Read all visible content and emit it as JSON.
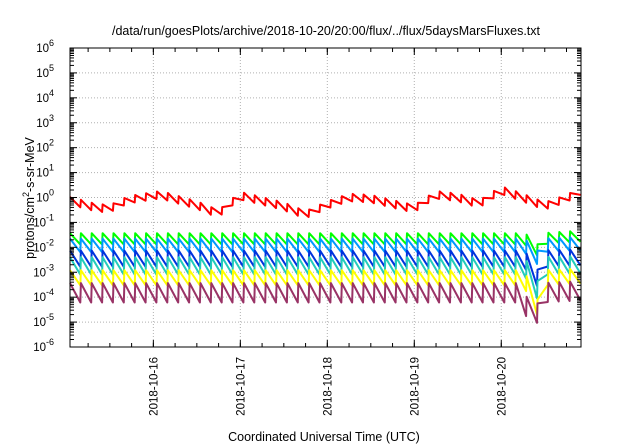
{
  "chart_data": {
    "type": "line",
    "title": "/data/run/goesPlots/archive/2018-10-20/20:00/flux/../flux/5daysMarsFluxes.txt",
    "xlabel": "Coordinated Universal Time (UTC)",
    "ylabel": "protons/cm2-s-sr-MeV",
    "ylabel_parts": {
      "before": "protons/cm",
      "sup": "2",
      "after": "-s-sr-MeV"
    },
    "yscale": "log",
    "ylim": [
      1e-06,
      1000000.0
    ],
    "xlim": [
      "2018-10-15 01:00",
      "2018-10-20 22:00"
    ],
    "grid": true,
    "x_ticks": [
      "2018-10-16",
      "2018-10-17",
      "2018-10-18",
      "2018-10-19",
      "2018-10-20"
    ],
    "y_ticks": [
      {
        "base": "10",
        "exp": "-6"
      },
      {
        "base": "10",
        "exp": "-5"
      },
      {
        "base": "10",
        "exp": "-4"
      },
      {
        "base": "10",
        "exp": "-3"
      },
      {
        "base": "10",
        "exp": "-2"
      },
      {
        "base": "10",
        "exp": "-1"
      },
      {
        "base": "10",
        "exp": "0"
      },
      {
        "base": "10",
        "exp": "1"
      },
      {
        "base": "10",
        "exp": "2"
      },
      {
        "base": "10",
        "exp": "3"
      },
      {
        "base": "10",
        "exp": "4"
      },
      {
        "base": "10",
        "exp": "5"
      },
      {
        "base": "10",
        "exp": "6"
      }
    ],
    "sawtooth_period_hours": 3,
    "series": [
      {
        "color": "#ff0000",
        "kind": "sawtooth",
        "keyframes": [
          [
            "2018-10-15 01:00",
            0.75
          ],
          [
            "2018-10-15 08:00",
            0.4
          ],
          [
            "2018-10-15 12:00",
            0.35
          ],
          [
            "2018-10-15 17:00",
            0.8
          ],
          [
            "2018-10-16 02:00",
            1.3
          ],
          [
            "2018-10-16 12:00",
            0.5
          ],
          [
            "2018-10-16 18:00",
            0.22
          ],
          [
            "2018-10-17 00:00",
            1.2
          ],
          [
            "2018-10-17 12:00",
            0.45
          ],
          [
            "2018-10-17 18:00",
            0.2
          ],
          [
            "2018-10-18 00:00",
            0.5
          ],
          [
            "2018-10-18 06:00",
            1.0
          ],
          [
            "2018-10-18 12:00",
            0.9
          ],
          [
            "2018-10-19 00:00",
            0.35
          ],
          [
            "2018-10-19 06:00",
            1.3
          ],
          [
            "2018-10-19 12:00",
            1.0
          ],
          [
            "2018-10-19 18:00",
            0.55
          ],
          [
            "2018-10-20 00:00",
            2.0
          ],
          [
            "2018-10-20 06:00",
            1.0
          ],
          [
            "2018-10-20 12:00",
            0.45
          ],
          [
            "2018-10-20 18:00",
            0.9
          ],
          [
            "2018-10-20 22:00",
            1.8
          ]
        ],
        "amplitude": 2.0
      },
      {
        "color": "#00ff00",
        "kind": "sawtooth",
        "keyframes": [
          [
            "2018-10-15 01:00",
            0.022
          ],
          [
            "2018-10-20 06:00",
            0.022
          ],
          [
            "2018-10-20 09:00",
            0.015
          ],
          [
            "2018-10-20 10:00",
            0.008
          ],
          [
            "2018-10-20 10:30",
            0.022
          ],
          [
            "2018-10-20 22:00",
            0.028
          ]
        ],
        "amplitude": 2.8
      },
      {
        "color": "#0099ff",
        "kind": "sawtooth",
        "keyframes": [
          [
            "2018-10-15 01:00",
            0.012
          ],
          [
            "2018-10-20 06:00",
            0.012
          ],
          [
            "2018-10-20 09:00",
            0.007
          ],
          [
            "2018-10-20 10:00",
            0.004
          ],
          [
            "2018-10-20 10:30",
            0.012
          ],
          [
            "2018-10-20 22:00",
            0.014
          ]
        ],
        "amplitude": 3.5
      },
      {
        "color": "#0033dd",
        "kind": "sawtooth",
        "keyframes": [
          [
            "2018-10-15 01:00",
            0.0035
          ],
          [
            "2018-10-20 06:00",
            0.0035
          ],
          [
            "2018-10-20 09:00",
            0.0015
          ],
          [
            "2018-10-20 10:00",
            0.0006
          ],
          [
            "2018-10-20 10:30",
            0.0035
          ],
          [
            "2018-10-20 22:00",
            0.004
          ]
        ],
        "amplitude": 4.5
      },
      {
        "color": "#22ccbb",
        "kind": "sawtooth",
        "keyframes": [
          [
            "2018-10-15 01:00",
            0.0018
          ],
          [
            "2018-10-20 06:00",
            0.0018
          ],
          [
            "2018-10-20 09:00",
            0.0006
          ],
          [
            "2018-10-20 10:00",
            0.0002
          ],
          [
            "2018-10-20 10:30",
            0.0018
          ],
          [
            "2018-10-20 22:00",
            0.002
          ]
        ],
        "amplitude": 5.0
      },
      {
        "color": "#ffff00",
        "kind": "sawtooth",
        "keyframes": [
          [
            "2018-10-15 01:00",
            0.0006
          ],
          [
            "2018-10-20 06:00",
            0.0006
          ],
          [
            "2018-10-20 09:00",
            0.00012
          ],
          [
            "2018-10-20 10:00",
            4e-05
          ],
          [
            "2018-10-20 10:30",
            0.0006
          ],
          [
            "2018-10-20 22:00",
            0.0007
          ]
        ],
        "amplitude": 4.0
      },
      {
        "color": "#993366",
        "kind": "sawtooth",
        "keyframes": [
          [
            "2018-10-15 01:00",
            0.00015
          ],
          [
            "2018-10-20 06:00",
            0.00015
          ],
          [
            "2018-10-20 08:00",
            1.2e-05
          ],
          [
            "2018-10-20 09:30",
            3.5e-06
          ],
          [
            "2018-10-20 10:30",
            0.00015
          ],
          [
            "2018-10-20 22:00",
            0.00018
          ]
        ],
        "amplitude": 6.0
      }
    ]
  }
}
